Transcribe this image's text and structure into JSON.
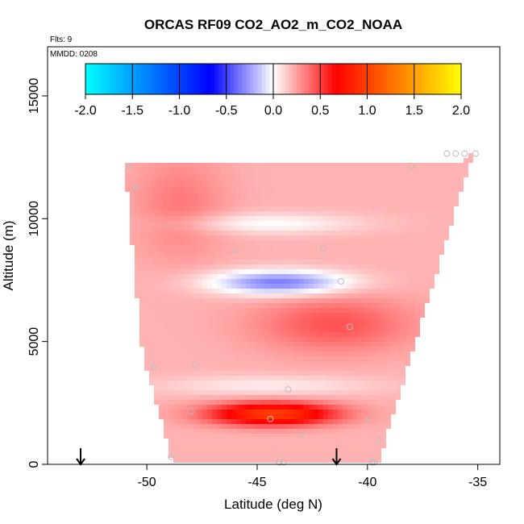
{
  "chart_data": {
    "type": "heatmap",
    "title": "ORCAS RF09 CO2_AO2_m_CO2_NOAA",
    "flights_label": "Flts: 9",
    "date_label": "MMDD: 0208",
    "xlabel": "Latitude (deg N)",
    "ylabel": "Altitude (m)",
    "xlim": [
      -54.5,
      -34.0
    ],
    "ylim": [
      0,
      17000
    ],
    "x_ticks": [
      -50,
      -45,
      -40,
      -35
    ],
    "x_tick_labels": [
      "-50",
      "-45",
      "-40",
      "-35"
    ],
    "y_ticks": [
      0,
      5000,
      10000,
      15000
    ],
    "y_tick_labels": [
      "0",
      "5000",
      "10000",
      "15000"
    ],
    "colorbar": {
      "min": -2.0,
      "max": 2.0,
      "ticks": [
        -2.0,
        -1.5,
        -1.0,
        -0.5,
        0.0,
        0.5,
        1.0,
        1.5,
        2.0
      ],
      "tick_labels": [
        "-2.0",
        "-1.5",
        "-1.0",
        "-0.5",
        "0.0",
        "0.5",
        "1.0",
        "1.5",
        "2.0"
      ],
      "colors": [
        "#00ffff",
        "#0080ff",
        "#0000ff",
        "#ffffff",
        "#ff0000",
        "#ff8000",
        "#ffff00"
      ]
    },
    "field": {
      "base_value": 0.2,
      "features": [
        {
          "name": "negative-core",
          "lat": -44.0,
          "alt": 7400,
          "sx": 2.2,
          "sy": 350,
          "amp": -0.55
        },
        {
          "name": "positive-core",
          "lat": -44.3,
          "alt": 2050,
          "sx": 2.0,
          "sy": 320,
          "amp": 0.8
        },
        {
          "name": "positive-mid",
          "lat": -41.5,
          "alt": 5700,
          "sx": 2.5,
          "sy": 800,
          "amp": 0.25
        },
        {
          "name": "positive-upper-left",
          "lat": -48.5,
          "alt": 10500,
          "sx": 1.5,
          "sy": 1500,
          "amp": 0.15
        },
        {
          "name": "white-band-upper",
          "lat": -44.5,
          "alt": 9800,
          "sx": 3.0,
          "sy": 300,
          "amp": -0.2
        },
        {
          "name": "white-band-low",
          "lat": -44.5,
          "alt": 3200,
          "sx": 3.5,
          "sy": 300,
          "amp": -0.15
        }
      ]
    },
    "domain_polygon": [
      [
        -51.0,
        12200
      ],
      [
        -36.0,
        12200
      ],
      [
        -35.2,
        12700
      ],
      [
        -39.5,
        0
      ],
      [
        -48.8,
        0
      ],
      [
        -50.2,
        4500
      ]
    ],
    "sample_points": [
      {
        "lat": -50.8,
        "alt": 12150
      },
      {
        "lat": -50.5,
        "alt": 11300
      },
      {
        "lat": -46.0,
        "alt": 8700
      },
      {
        "lat": -42.0,
        "alt": 8800
      },
      {
        "lat": -41.2,
        "alt": 7450
      },
      {
        "lat": -40.8,
        "alt": 5600
      },
      {
        "lat": -49.7,
        "alt": 3950
      },
      {
        "lat": -47.8,
        "alt": 4050
      },
      {
        "lat": -43.6,
        "alt": 3050
      },
      {
        "lat": -48.0,
        "alt": 2150
      },
      {
        "lat": -44.4,
        "alt": 1850
      },
      {
        "lat": -43.0,
        "alt": 1200
      },
      {
        "lat": -40.0,
        "alt": 1800
      },
      {
        "lat": -39.5,
        "alt": 1000
      },
      {
        "lat": -48.9,
        "alt": 300
      },
      {
        "lat": -44.0,
        "alt": 80
      },
      {
        "lat": -43.8,
        "alt": 80
      },
      {
        "lat": -39.8,
        "alt": 80
      },
      {
        "lat": -39.7,
        "alt": 80
      },
      {
        "lat": -36.4,
        "alt": 12650
      },
      {
        "lat": -36.0,
        "alt": 12650
      },
      {
        "lat": -35.6,
        "alt": 12650
      },
      {
        "lat": -35.1,
        "alt": 12650
      },
      {
        "lat": -38.0,
        "alt": 12150
      }
    ],
    "arrows": [
      {
        "lat": -53.0
      },
      {
        "lat": -41.4
      }
    ]
  }
}
